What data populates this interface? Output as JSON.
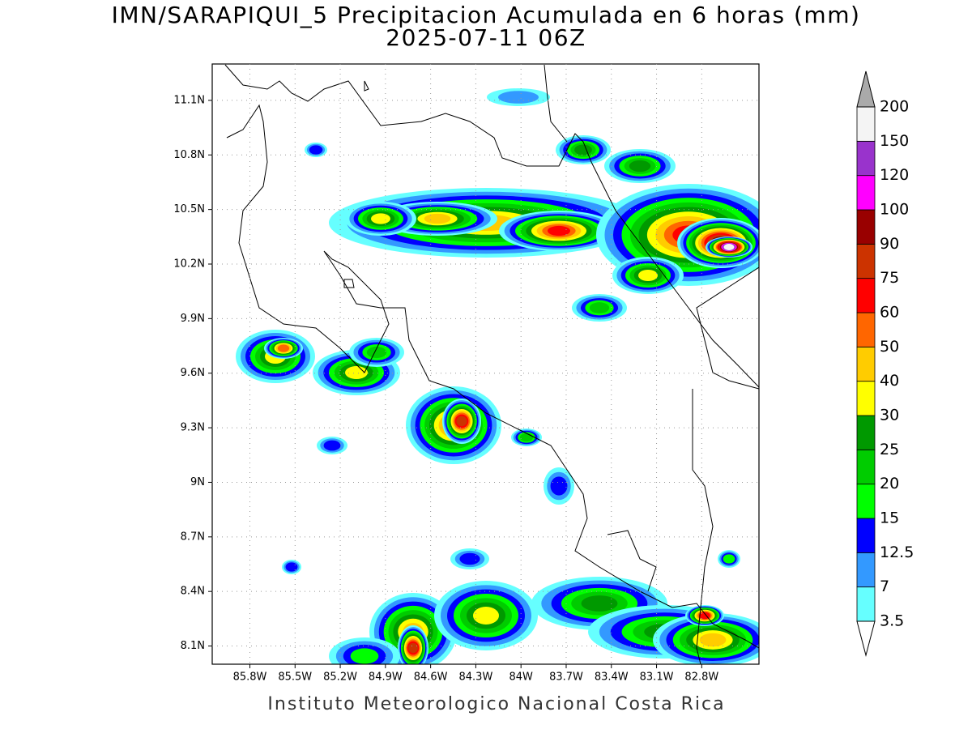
{
  "title": "IMN/SARAPIQUI_5 Precipitacion Acumulada en 6 horas (mm)",
  "subtitle": "2025-07-11 06Z",
  "footer": "Instituto Meteorologico Nacional Costa Rica",
  "map": {
    "xlim": [
      -86.05,
      -82.42
    ],
    "ylim": [
      8.0,
      11.3
    ],
    "grid": true,
    "xticks": [
      {
        "value": -85.8,
        "label": "85.8W"
      },
      {
        "value": -85.5,
        "label": "85.5W"
      },
      {
        "value": -85.2,
        "label": "85.2W"
      },
      {
        "value": -84.9,
        "label": "84.9W"
      },
      {
        "value": -84.6,
        "label": "84.6W"
      },
      {
        "value": -84.3,
        "label": "84.3W"
      },
      {
        "value": -84.0,
        "label": "84W"
      },
      {
        "value": -83.7,
        "label": "83.7W"
      },
      {
        "value": -83.4,
        "label": "83.4W"
      },
      {
        "value": -83.1,
        "label": "83.1W"
      },
      {
        "value": -82.8,
        "label": "82.8W"
      }
    ],
    "yticks": [
      {
        "value": 8.1,
        "label": "8.1N"
      },
      {
        "value": 8.4,
        "label": "8.4N"
      },
      {
        "value": 8.7,
        "label": "8.7N"
      },
      {
        "value": 9.0,
        "label": "9N"
      },
      {
        "value": 9.3,
        "label": "9.3N"
      },
      {
        "value": 9.6,
        "label": "9.6N"
      },
      {
        "value": 9.9,
        "label": "9.9N"
      },
      {
        "value": 10.2,
        "label": "10.2N"
      },
      {
        "value": 10.5,
        "label": "10.5N"
      },
      {
        "value": 10.8,
        "label": "10.8N"
      },
      {
        "value": 11.1,
        "label": "11.1N"
      }
    ]
  },
  "colorbar": {
    "levels": [
      3.5,
      7,
      12.5,
      15,
      20,
      25,
      30,
      40,
      50,
      60,
      75,
      90,
      100,
      120,
      150,
      200
    ],
    "colors": [
      "#66ffff",
      "#3399ff",
      "#0000ff",
      "#00ff00",
      "#00cc00",
      "#009900",
      "#ffff00",
      "#ffcc00",
      "#ff6600",
      "#ff0000",
      "#cc3300",
      "#990000",
      "#ff00ff",
      "#9933cc",
      "#f4f4f4"
    ],
    "under_color": "#ffffff",
    "over_color": "#aaaaaa"
  }
}
